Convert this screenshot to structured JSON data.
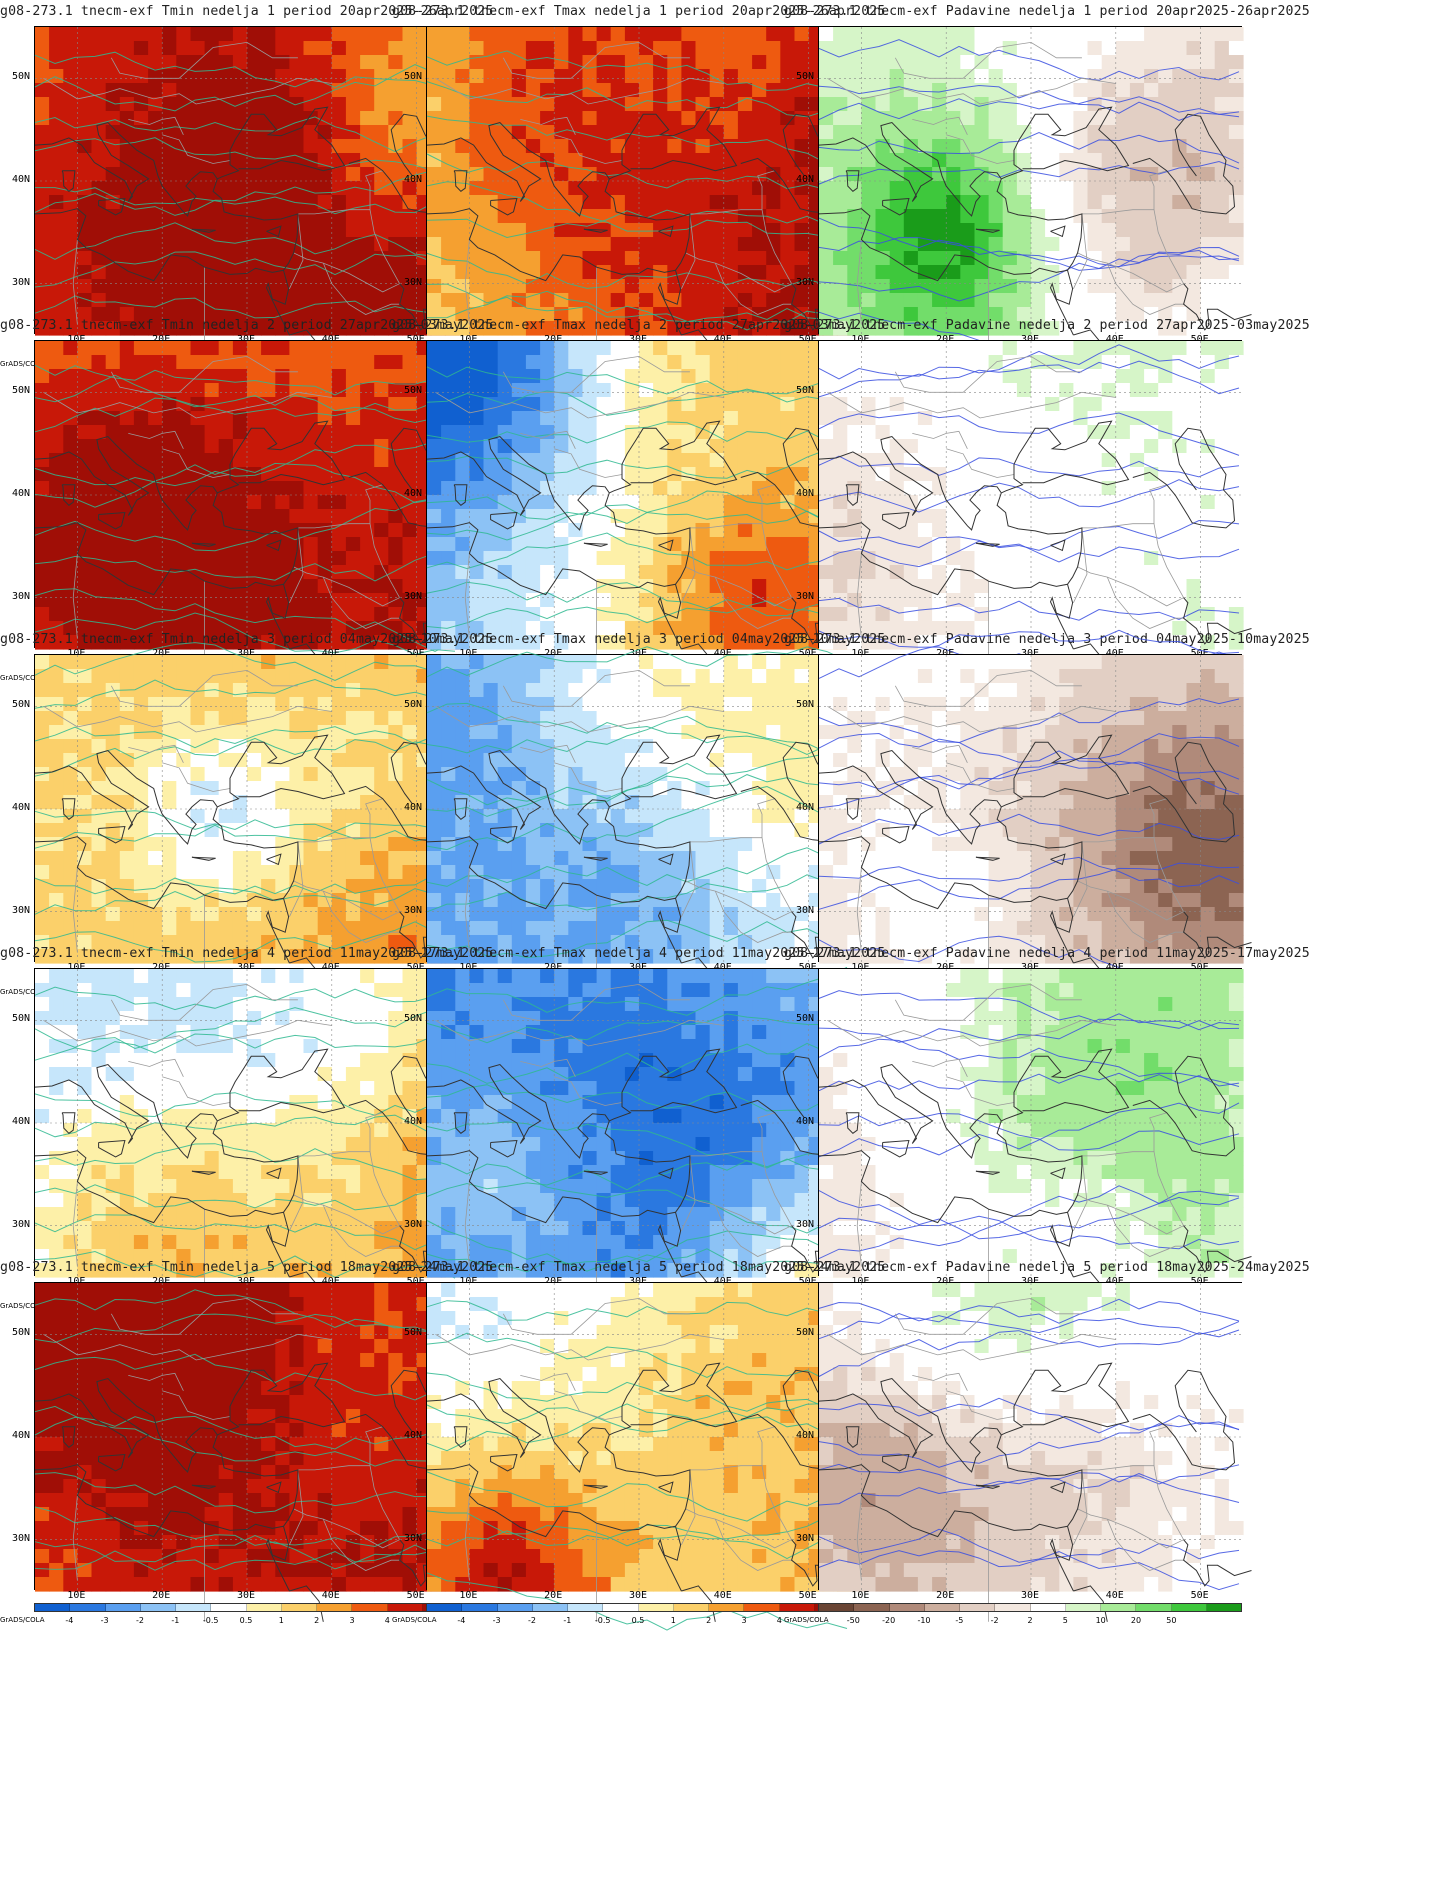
{
  "panels": [
    {
      "title": "g08-273.1 tnecm-exf Tmin nedelja 1 period 20apr2025-26apr2025",
      "type": "tmin",
      "seed": 11,
      "level": 0.55
    },
    {
      "title": "g08-273.1 tnecm-exf Tmax nedelja 1 period 20apr2025-26apr2025",
      "type": "tmax",
      "seed": 12,
      "level": 0.25
    },
    {
      "title": "g08-273.1 tnecm-exf Padavine nedelja 1 period 20apr2025-26apr2025",
      "type": "prec",
      "seed": 13,
      "level": 0.2
    },
    {
      "title": "g08-273.1 tnecm-exf Tmin nedelja 2 period 27apr2025-03may2025",
      "type": "tmin",
      "seed": 21,
      "level": 0.35
    },
    {
      "title": "g08-273.1 tnecm-exf Tmax nedelja 2 period 27apr2025-03may2025",
      "type": "tmax",
      "seed": 22,
      "level": -0.25
    },
    {
      "title": "g08-273.1 tnecm-exf Padavine nedelja 2 period 27apr2025-03may2025",
      "type": "prec",
      "seed": 23,
      "level": 0.15
    },
    {
      "title": "g08-273.1 tnecm-exf Tmin nedelja 3 period 04may2025-10may2025",
      "type": "tmin",
      "seed": 31,
      "level": 0.2
    },
    {
      "title": "g08-273.1 tnecm-exf Tmax nedelja 3 period 04may2025-10may2025",
      "type": "tmax",
      "seed": 32,
      "level": -0.4
    },
    {
      "title": "g08-273.1 tnecm-exf Padavine nedelja 3 period 04may2025-10may2025",
      "type": "prec",
      "seed": 33,
      "level": -0.1
    },
    {
      "title": "g08-273.1 tnecm-exf Tmin nedelja 4 period 11may2025-17may2025",
      "type": "tmin",
      "seed": 41,
      "level": 0.05
    },
    {
      "title": "g08-273.1 tnecm-exf Tmax nedelja 4 period 11may2025-17may2025",
      "type": "tmax",
      "seed": 42,
      "level": -0.55
    },
    {
      "title": "g08-273.1 tnecm-exf Padavine nedelja 4 period 11may2025-17may2025",
      "type": "prec",
      "seed": 43,
      "level": 0.05
    },
    {
      "title": "g08-273.1 tnecm-exf Tmin nedelja 5 period 18may2025-24may2025",
      "type": "tmin",
      "seed": 51,
      "level": 0.5
    },
    {
      "title": "g08-273.1 tnecm-exf Tmax nedelja 5 period 18may2025-24may2025",
      "type": "tmax",
      "seed": 52,
      "level": -0.1
    },
    {
      "title": "g08-273.1 tnecm-exf Padavine nedelja 5 period 18may2025-24may2025",
      "type": "prec",
      "seed": 53,
      "level": 0.0
    }
  ],
  "lat_labels": [
    "50N",
    "40N",
    "30N"
  ],
  "lon_labels": [
    "10E",
    "20E",
    "30E",
    "40E",
    "50E"
  ],
  "grads_label": "GrADS/COLA",
  "temp_scale": {
    "labels": [
      "-4",
      "-3",
      "-2",
      "-1",
      "-0.5",
      "0.5",
      "1",
      "2",
      "3",
      "4"
    ],
    "colors": [
      "#1060d0",
      "#2a78e0",
      "#5a9ff0",
      "#8cc2f5",
      "#c6e6fb",
      "#ffffff",
      "#fdf0a8",
      "#fbd06a",
      "#f5a030",
      "#ee5a10",
      "#c81808",
      "#a00e06"
    ]
  },
  "prec_scale": {
    "labels": [
      "-50",
      "-20",
      "-10",
      "-5",
      "-2",
      "2",
      "5",
      "10",
      "20",
      "50"
    ],
    "colors": [
      "#6a4535",
      "#8c6452",
      "#b08a7a",
      "#ccae9e",
      "#e2cfc4",
      "#f3e8e0",
      "#ffffff",
      "#d6f5c8",
      "#a8eb98",
      "#72dd6a",
      "#3ec83c",
      "#1a9c1a"
    ]
  }
}
